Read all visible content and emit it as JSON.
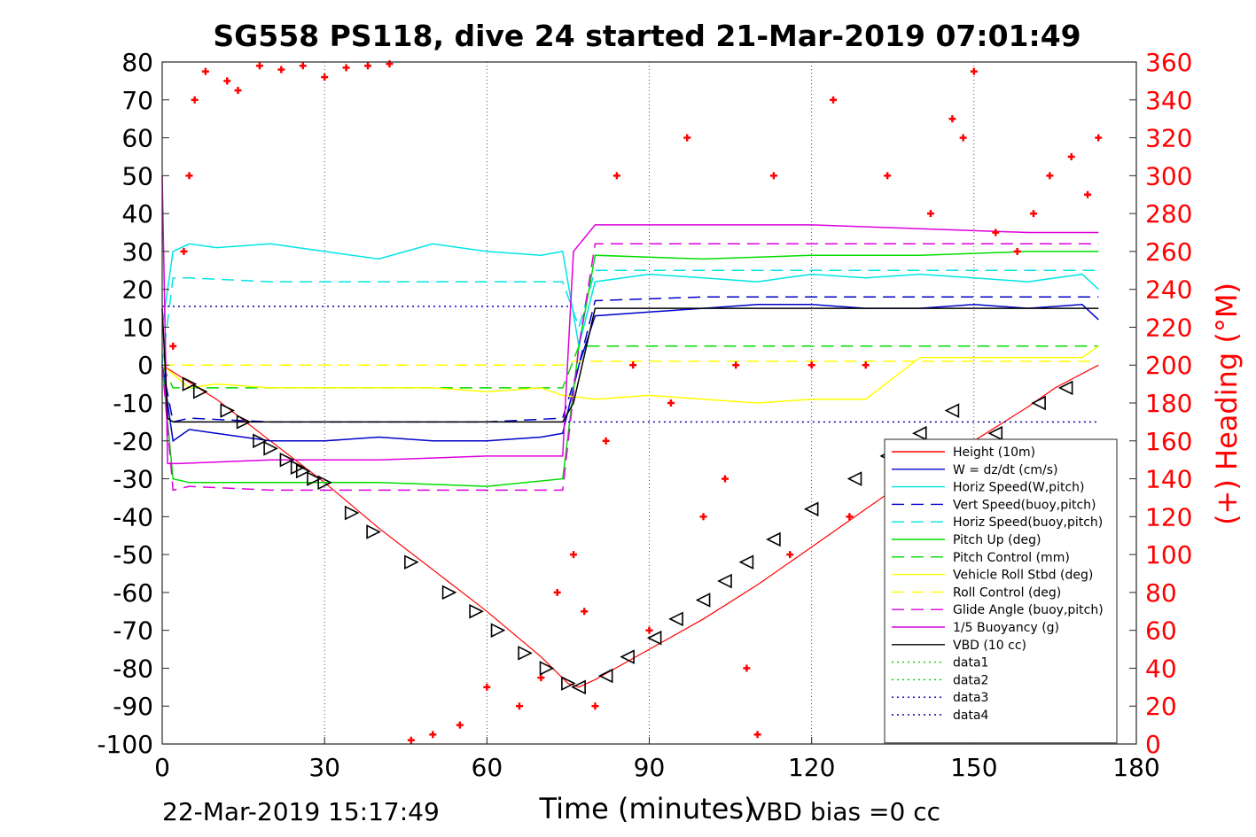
{
  "chart_data": {
    "type": "line",
    "title": "SG558 PS118, dive 24 started 21-Mar-2019 07:01:49",
    "xlabel": "Time (minutes)",
    "ylabel": "",
    "y2label": "(+) Heading (°M)",
    "xlim": [
      0,
      180
    ],
    "ylim": [
      -100,
      80
    ],
    "y2lim": [
      0,
      360
    ],
    "xticks": [
      "0",
      "30",
      "60",
      "90",
      "120",
      "150",
      "180"
    ],
    "yticks": [
      "-100",
      "-90",
      "-80",
      "-70",
      "-60",
      "-50",
      "-40",
      "-30",
      "-20",
      "-10",
      "0",
      "10",
      "20",
      "30",
      "40",
      "50",
      "60",
      "70",
      "80"
    ],
    "y2ticks": [
      "0",
      "20",
      "40",
      "60",
      "80",
      "100",
      "120",
      "140",
      "160",
      "180",
      "200",
      "220",
      "240",
      "260",
      "280",
      "300",
      "320",
      "340",
      "360"
    ],
    "grid": "vertical",
    "legend_position": "bottom-right",
    "footer_left": "22-Mar-2019 15:17:49",
    "footer_right": "VBD bias =0 cc",
    "colors": {
      "height": "#ff0000",
      "w": "#0000cc",
      "hspeed": "#00e5e5",
      "vspeed_buoy": "#0000cc",
      "hspeed_buoy": "#00e5e5",
      "pitch": "#00dd00",
      "pitch_ctrl": "#00dd00",
      "roll": "#ffff00",
      "roll_ctrl": "#ffff00",
      "glide": "#dd00dd",
      "buoy": "#dd00dd",
      "vbd": "#000000",
      "heading": "#ff0000"
    },
    "series": [
      {
        "name": "Height (10m)",
        "key": "height",
        "style": "solid",
        "x": [
          0,
          10,
          20,
          30,
          40,
          50,
          60,
          70,
          75,
          77,
          80,
          90,
          100,
          110,
          120,
          130,
          140,
          150,
          160,
          165,
          173
        ],
        "y": [
          0,
          -9,
          -20,
          -31,
          -43,
          -54,
          -65,
          -77,
          -84,
          -85,
          -83,
          -75,
          -67,
          -58,
          -48,
          -38,
          -28,
          -20,
          -11,
          -6,
          0
        ]
      },
      {
        "name": "W = dz/dt (cm/s)",
        "key": "w",
        "style": "solid",
        "x": [
          0,
          2,
          5,
          10,
          20,
          30,
          40,
          50,
          60,
          70,
          74,
          77,
          80,
          90,
          100,
          110,
          120,
          130,
          140,
          150,
          160,
          170,
          173
        ],
        "y": [
          0,
          -20,
          -17,
          -18,
          -20,
          -20,
          -19,
          -20,
          -20,
          -19,
          -18,
          0,
          13,
          14,
          15,
          16,
          16,
          15,
          15,
          16,
          15,
          16,
          12
        ]
      },
      {
        "name": "Horiz Speed(W,pitch)",
        "key": "hspeed",
        "style": "solid",
        "x": [
          0,
          2,
          5,
          10,
          20,
          30,
          40,
          50,
          60,
          70,
          74,
          77,
          80,
          90,
          100,
          110,
          120,
          130,
          140,
          150,
          160,
          170,
          173
        ],
        "y": [
          10,
          30,
          32,
          31,
          32,
          30,
          28,
          32,
          30,
          29,
          30,
          5,
          22,
          24,
          23,
          22,
          24,
          23,
          24,
          23,
          22,
          24,
          20
        ]
      },
      {
        "name": "Vert Speed(buoy,pitch)",
        "key": "vspeed_buoy",
        "style": "dash",
        "x": [
          0,
          2,
          5,
          20,
          40,
          60,
          74,
          77,
          80,
          100,
          120,
          140,
          160,
          173
        ],
        "y": [
          0,
          -15,
          -14,
          -15,
          -15,
          -15,
          -14,
          0,
          17,
          18,
          18,
          18,
          18,
          18
        ]
      },
      {
        "name": "Horiz Speed(buoy,pitch)",
        "key": "hspeed_buoy",
        "style": "dash",
        "x": [
          0,
          2,
          5,
          20,
          40,
          60,
          74,
          77,
          80,
          100,
          120,
          140,
          160,
          173
        ],
        "y": [
          0,
          23,
          23,
          22,
          22,
          22,
          22,
          10,
          25,
          25,
          25,
          25,
          25,
          25
        ]
      },
      {
        "name": "Pitch Up (deg)",
        "key": "pitch",
        "style": "solid",
        "x": [
          0,
          2,
          5,
          20,
          40,
          60,
          74,
          77,
          80,
          100,
          120,
          140,
          160,
          173
        ],
        "y": [
          0,
          -30,
          -31,
          -31,
          -31,
          -32,
          -30,
          5,
          29,
          28,
          29,
          29,
          30,
          30
        ]
      },
      {
        "name": "Pitch Control (mm)",
        "key": "pitch_ctrl",
        "style": "dash",
        "x": [
          0,
          2,
          74,
          77,
          173
        ],
        "y": [
          0,
          -6,
          -6,
          5,
          5
        ]
      },
      {
        "name": "Vehicle Roll Stbd (deg)",
        "key": "roll",
        "style": "solid",
        "x": [
          0,
          5,
          10,
          20,
          30,
          40,
          50,
          60,
          70,
          74,
          80,
          90,
          100,
          110,
          120,
          130,
          140,
          150,
          160,
          170,
          173
        ],
        "y": [
          0,
          -6,
          -5,
          -6,
          -6,
          -6,
          -6,
          -7,
          -6,
          -8,
          -9,
          -8,
          -9,
          -10,
          -9,
          -9,
          2,
          2,
          2,
          2,
          5
        ]
      },
      {
        "name": "Roll Control (deg)",
        "key": "roll_ctrl",
        "style": "dash",
        "x": [
          0,
          74,
          76,
          173
        ],
        "y": [
          0,
          0,
          1,
          1
        ]
      },
      {
        "name": "Glide Angle (buoy,pitch)",
        "key": "glide",
        "style": "dash",
        "x": [
          0,
          2,
          5,
          20,
          40,
          60,
          74,
          77,
          80,
          100,
          120,
          140,
          160,
          173
        ],
        "y": [
          0,
          -33,
          -32,
          -33,
          -33,
          -33,
          -33,
          5,
          32,
          32,
          32,
          32,
          32,
          32
        ]
      },
      {
        "name": "1/5 Buoyancy (g)",
        "key": "buoy",
        "style": "solid",
        "x": [
          0,
          1,
          3,
          20,
          40,
          60,
          74,
          76,
          80,
          100,
          120,
          140,
          160,
          173
        ],
        "y": [
          50,
          -26,
          -26,
          -25,
          -25,
          -24,
          -24,
          30,
          37,
          37,
          37,
          36,
          35,
          35
        ]
      },
      {
        "name": "VBD (10 cc)",
        "key": "vbd",
        "style": "solid",
        "x": [
          0,
          1,
          2,
          20,
          40,
          60,
          74,
          76,
          80,
          100,
          120,
          140,
          160,
          173
        ],
        "y": [
          15,
          -14,
          -15,
          -15,
          -15,
          -15,
          -15,
          -10,
          15,
          15,
          15,
          15,
          15,
          15
        ]
      },
      {
        "name": "data1",
        "key": "data1",
        "style": "dot",
        "x": [],
        "y": []
      },
      {
        "name": "data2",
        "key": "data2",
        "style": "dot",
        "x": [],
        "y": []
      },
      {
        "name": "data3",
        "key": "data3",
        "style": "dot",
        "x": [
          0,
          75
        ],
        "y": [
          15.5,
          15.5
        ]
      },
      {
        "name": "data4",
        "key": "data4",
        "style": "dot",
        "x": [
          75,
          173
        ],
        "y": [
          -15,
          -15
        ]
      }
    ],
    "heading": {
      "name": "(+) Heading",
      "axis": "right",
      "x": [
        2,
        4,
        5,
        6,
        8,
        12,
        14,
        18,
        22,
        26,
        30,
        34,
        38,
        42,
        46,
        50,
        55,
        60,
        66,
        70,
        73,
        76,
        78,
        80,
        82,
        84,
        87,
        90,
        94,
        97,
        100,
        104,
        106,
        108,
        110,
        113,
        116,
        120,
        124,
        127,
        130,
        134,
        138,
        142,
        146,
        148,
        150,
        154,
        158,
        161,
        164,
        168,
        171,
        173
      ],
      "y": [
        210,
        260,
        300,
        340,
        355,
        350,
        345,
        358,
        356,
        358,
        352,
        357,
        358,
        359,
        2,
        5,
        10,
        30,
        20,
        35,
        80,
        100,
        70,
        20,
        160,
        300,
        200,
        60,
        180,
        320,
        120,
        140,
        200,
        40,
        5,
        300,
        100,
        200,
        340,
        120,
        200,
        300,
        150,
        280,
        330,
        320,
        355,
        270,
        260,
        280,
        300,
        310,
        290,
        320
      ]
    },
    "markers": {
      "down": {
        "x": [
          5,
          7,
          12,
          15,
          18,
          20,
          23,
          25,
          26,
          28,
          30,
          35,
          39,
          46,
          53,
          58,
          62,
          67,
          71,
          75
        ],
        "y": [
          -5,
          -7,
          -12,
          -15,
          -20,
          -22,
          -25,
          -27,
          -28,
          -30,
          -31,
          -39,
          -44,
          -52,
          -60,
          -65,
          -70,
          -76,
          -80,
          -84
        ]
      },
      "up": {
        "x": [
          77,
          82,
          86,
          91,
          95,
          100,
          104,
          108,
          113,
          120,
          128,
          134,
          140,
          146,
          154,
          162,
          167
        ],
        "y": [
          -85,
          -82,
          -77,
          -72,
          -67,
          -62,
          -57,
          -52,
          -46,
          -38,
          -30,
          -24,
          -18,
          -12,
          -18,
          -10,
          -6
        ]
      }
    }
  }
}
